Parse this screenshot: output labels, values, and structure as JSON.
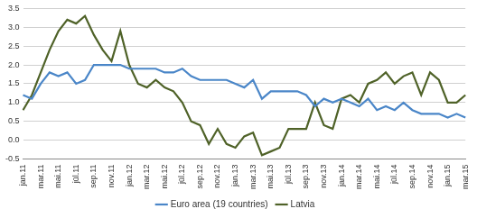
{
  "chart_data": {
    "type": "line",
    "categories": [
      "jan.11",
      null,
      "mar.11",
      null,
      "mai.11",
      null,
      "jūl.11",
      null,
      "sep.11",
      null,
      "nov.11",
      null,
      "jan.12",
      null,
      "mar.12",
      null,
      "mai.12",
      null,
      "jūl.12",
      null,
      "sep.12",
      null,
      "nov.12",
      null,
      "jan.13",
      null,
      "mar.13",
      null,
      "mai.13",
      null,
      "jūl.13",
      null,
      "sep.13",
      null,
      "nov.13",
      null,
      "jan.14",
      null,
      "mar.14",
      null,
      "mai.14",
      null,
      "jūl.14",
      null,
      "sep.14",
      null,
      "nov.14",
      null,
      "jan.15",
      null,
      "mar.15"
    ],
    "series": [
      {
        "name": "Euro area (19 countries)",
        "color": "#4a86c8",
        "values": [
          1.2,
          1.1,
          1.5,
          1.8,
          1.7,
          1.8,
          1.5,
          1.6,
          2.0,
          2.0,
          2.0,
          2.0,
          1.9,
          1.9,
          1.9,
          1.9,
          1.8,
          1.8,
          1.9,
          1.7,
          1.6,
          1.6,
          1.6,
          1.6,
          1.5,
          1.4,
          1.6,
          1.1,
          1.3,
          1.3,
          1.3,
          1.3,
          1.2,
          0.9,
          1.1,
          1.0,
          1.1,
          1.0,
          0.9,
          1.1,
          0.8,
          0.9,
          0.8,
          1.0,
          0.8,
          0.7,
          0.7,
          0.7,
          0.6,
          0.7,
          0.6
        ]
      },
      {
        "name": "Latvia",
        "color": "#4f6228",
        "values": [
          0.8,
          1.2,
          1.8,
          2.4,
          2.9,
          3.2,
          3.1,
          3.3,
          2.8,
          2.4,
          2.1,
          2.9,
          2.0,
          1.5,
          1.4,
          1.6,
          1.4,
          1.3,
          1.0,
          0.5,
          0.4,
          -0.1,
          0.3,
          -0.1,
          -0.2,
          0.1,
          0.2,
          -0.4,
          -0.3,
          -0.2,
          0.3,
          0.3,
          0.3,
          1.0,
          0.4,
          0.3,
          1.1,
          1.2,
          1.0,
          1.5,
          1.6,
          1.8,
          1.5,
          1.7,
          1.8,
          1.2,
          1.8,
          1.6,
          1.0,
          1.0,
          1.2
        ]
      }
    ],
    "ylim": [
      -0.5,
      3.5
    ],
    "yticks": [
      {
        "value": -0.5,
        "label": "-0.5"
      },
      {
        "value": 0,
        "label": "0.0"
      },
      {
        "value": 0.5,
        "label": "0.5"
      },
      {
        "value": 1,
        "label": "1.0"
      },
      {
        "value": 1.5,
        "label": "1.5"
      },
      {
        "value": 2,
        "label": "2.0"
      },
      {
        "value": 2.5,
        "label": "2.5"
      },
      {
        "value": 3,
        "label": "3.0"
      },
      {
        "value": 3.5,
        "label": "3.5"
      }
    ],
    "grid": true,
    "legend": "bottom"
  }
}
